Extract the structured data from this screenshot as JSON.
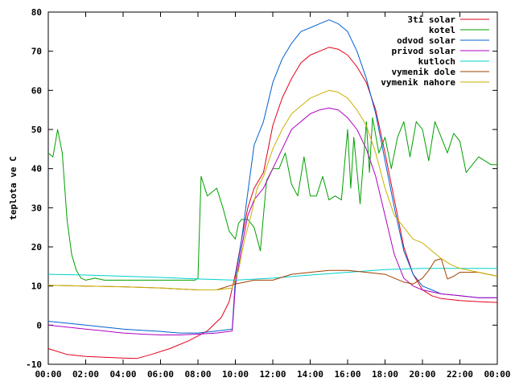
{
  "chart_data": {
    "type": "line",
    "title": "",
    "xlabel": "",
    "ylabel": "teplota ve C",
    "xlim": [
      "00:00",
      "24:00"
    ],
    "ylim": [
      -10,
      80
    ],
    "x_ticks": [
      "00:00",
      "02:00",
      "04:00",
      "06:00",
      "08:00",
      "10:00",
      "12:00",
      "14:00",
      "16:00",
      "18:00",
      "20:00",
      "22:00",
      "00:00"
    ],
    "y_ticks": [
      -10,
      0,
      10,
      20,
      30,
      40,
      50,
      60,
      70,
      80
    ],
    "grid": false,
    "legend_position": "top-right",
    "series": [
      {
        "name": "3ti solar",
        "color": "#e3001b",
        "x": [
          "00:00",
          "01:00",
          "02:00",
          "03:00",
          "04:00",
          "04:45",
          "05:30",
          "06:30",
          "07:30",
          "08:30",
          "09:15",
          "09:40",
          "10:00",
          "10:20",
          "10:40",
          "11:00",
          "11:30",
          "12:00",
          "12:30",
          "13:00",
          "13:30",
          "14:00",
          "14:30",
          "15:00",
          "15:30",
          "16:00",
          "16:30",
          "17:00",
          "17:30",
          "18:00",
          "18:30",
          "19:00",
          "19:30",
          "20:00",
          "20:30",
          "21:00",
          "22:00",
          "23:00",
          "24:00"
        ],
        "values": [
          -6,
          -7.5,
          -8,
          -8.2,
          -8.4,
          -8.5,
          -7.5,
          -6,
          -4,
          -1.5,
          2,
          6,
          13,
          22,
          30,
          35,
          39,
          51,
          58,
          63,
          67,
          69,
          70,
          71,
          70.5,
          69,
          66,
          62,
          55,
          44,
          32,
          20,
          13,
          9,
          7.5,
          6.8,
          6.3,
          6,
          5.8
        ]
      },
      {
        "name": "kotel",
        "color": "#00a000",
        "x": [
          "00:00",
          "00:15",
          "00:30",
          "00:45",
          "01:00",
          "01:15",
          "01:30",
          "01:45",
          "02:00",
          "02:30",
          "03:00",
          "04:00",
          "05:00",
          "06:00",
          "07:00",
          "07:50",
          "08:00",
          "08:10",
          "08:30",
          "09:00",
          "09:20",
          "09:40",
          "10:00",
          "10:10",
          "10:20",
          "10:40",
          "11:00",
          "11:20",
          "11:40",
          "12:00",
          "12:20",
          "12:40",
          "13:00",
          "13:20",
          "13:40",
          "14:00",
          "14:20",
          "14:40",
          "15:00",
          "15:20",
          "15:40",
          "16:00",
          "16:10",
          "16:20",
          "16:40",
          "17:00",
          "17:10",
          "17:20",
          "17:40",
          "18:00",
          "18:20",
          "18:40",
          "19:00",
          "19:20",
          "19:40",
          "20:00",
          "20:20",
          "20:40",
          "21:00",
          "21:20",
          "21:40",
          "22:00",
          "22:20",
          "22:40",
          "23:00",
          "23:20",
          "23:40",
          "24:00"
        ],
        "values": [
          44,
          43,
          50,
          44,
          27,
          18,
          14,
          12,
          11.5,
          12,
          11.5,
          11.5,
          11.5,
          11.5,
          11.5,
          11.5,
          12,
          38,
          33,
          35,
          30,
          24,
          22,
          26,
          27,
          27,
          25,
          19,
          37,
          40,
          40,
          44,
          36,
          33,
          43,
          33,
          33,
          38,
          32,
          33,
          32,
          50,
          35,
          48,
          31,
          52,
          39,
          53,
          44,
          48,
          40,
          48,
          52,
          43,
          52,
          50,
          42,
          52,
          48,
          44,
          49,
          47,
          39,
          41,
          43,
          42,
          41,
          41
        ]
      },
      {
        "name": "odvod solar",
        "color": "#0060d0",
        "x": [
          "00:00",
          "01:00",
          "02:00",
          "03:00",
          "04:00",
          "05:00",
          "06:00",
          "07:00",
          "08:00",
          "09:00",
          "09:50",
          "10:00",
          "10:20",
          "10:40",
          "11:00",
          "11:30",
          "12:00",
          "12:30",
          "13:00",
          "13:30",
          "14:00",
          "14:30",
          "15:00",
          "15:30",
          "16:00",
          "16:30",
          "17:00",
          "17:30",
          "18:00",
          "18:30",
          "19:00",
          "19:30",
          "20:00",
          "20:30",
          "21:00",
          "22:00",
          "23:00",
          "24:00"
        ],
        "values": [
          1,
          0.5,
          0,
          -0.5,
          -1,
          -1.3,
          -1.6,
          -2,
          -2,
          -1.5,
          -1,
          12,
          22,
          34,
          46,
          52,
          62,
          68,
          72,
          75,
          76,
          77,
          78,
          77,
          75,
          70,
          63,
          54,
          42,
          30,
          19,
          13,
          10,
          9,
          8,
          7.5,
          7,
          7
        ]
      },
      {
        "name": "privod solar",
        "color": "#b000c0",
        "x": [
          "00:00",
          "01:00",
          "02:00",
          "03:00",
          "04:00",
          "05:00",
          "06:00",
          "07:00",
          "08:00",
          "09:00",
          "09:50",
          "10:00",
          "10:20",
          "10:40",
          "11:00",
          "11:30",
          "12:00",
          "12:30",
          "13:00",
          "13:30",
          "14:00",
          "14:30",
          "15:00",
          "15:30",
          "16:00",
          "16:30",
          "17:00",
          "17:30",
          "18:00",
          "18:30",
          "19:00",
          "19:30",
          "20:00",
          "20:30",
          "21:00",
          "22:00",
          "23:00",
          "24:00"
        ],
        "values": [
          0,
          -0.5,
          -1,
          -1.5,
          -2,
          -2.3,
          -2.5,
          -2.5,
          -2.3,
          -2,
          -1.5,
          10,
          20,
          28,
          32,
          35,
          40,
          45,
          50,
          52,
          54,
          55,
          55.5,
          55,
          53,
          50,
          45,
          38,
          28,
          18,
          12,
          10,
          9,
          8.5,
          8,
          7.5,
          7,
          7
        ]
      },
      {
        "name": "kutloch",
        "color": "#00d0d0",
        "x": [
          "00:00",
          "02:00",
          "04:00",
          "06:00",
          "08:00",
          "10:00",
          "12:00",
          "14:00",
          "16:00",
          "18:00",
          "20:00",
          "22:00",
          "24:00"
        ],
        "values": [
          13,
          12.8,
          12.5,
          12.2,
          11.8,
          11.5,
          12,
          12.8,
          13.5,
          14.2,
          14.5,
          14.5,
          14.5
        ]
      },
      {
        "name": "vymenik dole",
        "color": "#a04000",
        "x": [
          "00:00",
          "02:00",
          "04:00",
          "06:00",
          "08:00",
          "09:00",
          "10:00",
          "11:00",
          "12:00",
          "13:00",
          "14:00",
          "15:00",
          "16:00",
          "17:00",
          "18:00",
          "19:00",
          "19:30",
          "20:00",
          "20:20",
          "20:40",
          "21:00",
          "21:20",
          "21:40",
          "22:00",
          "23:00",
          "24:00"
        ],
        "values": [
          10.2,
          10,
          9.8,
          9.5,
          9,
          9,
          10.5,
          11.5,
          11.5,
          13,
          13.5,
          14,
          14,
          13.5,
          13,
          11,
          10.5,
          12,
          14,
          16.5,
          17,
          11.8,
          12.5,
          13.5,
          13.5,
          12.5
        ]
      },
      {
        "name": "vymenik nahore",
        "color": "#c8b000",
        "x": [
          "00:00",
          "02:00",
          "04:00",
          "06:00",
          "08:00",
          "09:00",
          "09:50",
          "10:10",
          "10:30",
          "10:50",
          "11:10",
          "11:30",
          "12:00",
          "12:30",
          "13:00",
          "13:30",
          "14:00",
          "14:30",
          "15:00",
          "15:30",
          "16:00",
          "16:30",
          "17:00",
          "17:30",
          "18:00",
          "18:30",
          "19:00",
          "19:30",
          "20:00",
          "20:30",
          "21:00",
          "21:30",
          "22:00",
          "23:00",
          "24:00"
        ],
        "values": [
          10.2,
          10,
          9.8,
          9.5,
          9,
          9,
          9.5,
          14,
          22,
          28,
          35,
          38,
          45,
          50,
          54,
          56,
          58,
          59,
          60,
          59.5,
          58,
          55,
          51,
          44,
          35,
          28,
          25,
          22,
          21,
          19,
          17,
          15.5,
          14.5,
          13.5,
          12.5
        ]
      }
    ]
  }
}
